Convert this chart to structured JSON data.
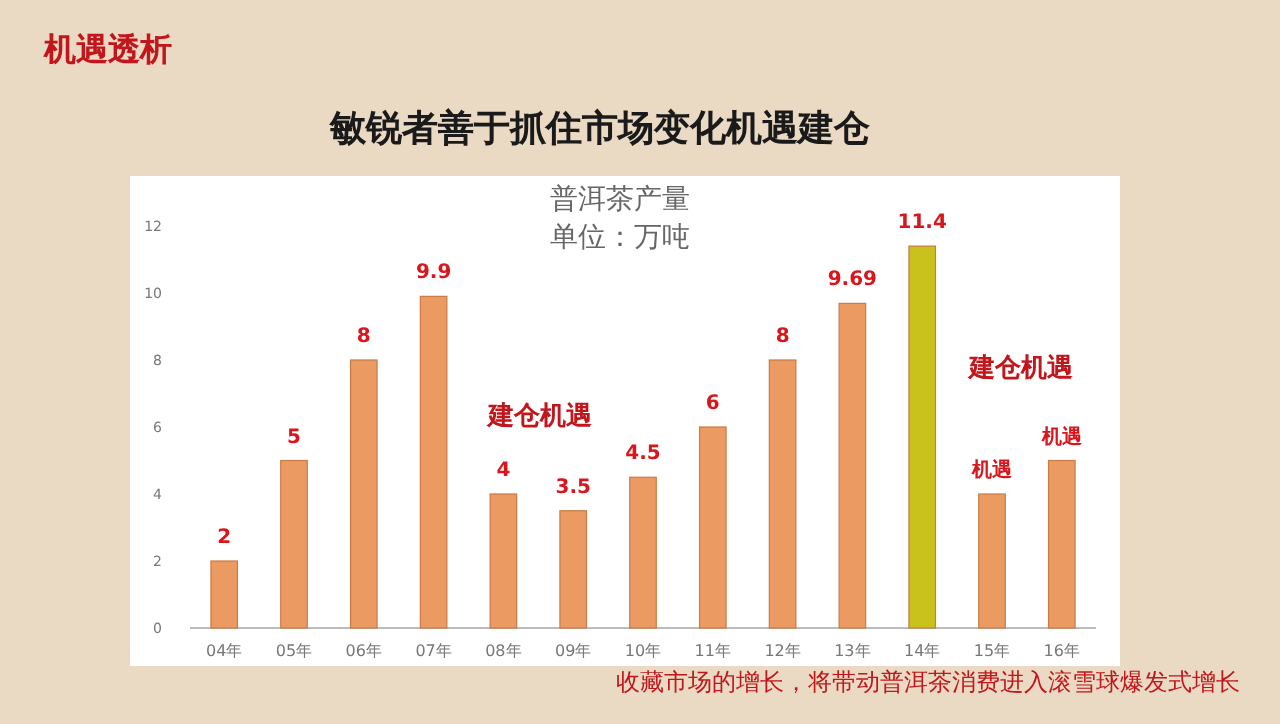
{
  "chart_data": {
    "type": "bar",
    "title": "敏锐者善于抓住市场变化机遇建仓",
    "subtitle": "普洱茶产量",
    "ylabel": "单位：万吨",
    "categories": [
      "04年",
      "05年",
      "06年",
      "07年",
      "08年",
      "09年",
      "10年",
      "11年",
      "12年",
      "13年",
      "14年",
      "15年",
      "16年"
    ],
    "values": [
      2,
      5,
      8,
      9.9,
      4,
      3.5,
      4.5,
      6,
      8,
      9.69,
      11.4,
      4,
      5
    ],
    "value_labels": [
      "2",
      "5",
      "8",
      "9.9",
      "4",
      "3.5",
      "4.5",
      "6",
      "8",
      "9.69",
      "11.4",
      "机遇",
      "机遇"
    ],
    "colors": [
      "#eb9a62",
      "#eb9a62",
      "#eb9a62",
      "#eb9a62",
      "#eb9a62",
      "#eb9a62",
      "#eb9a62",
      "#eb9a62",
      "#eb9a62",
      "#eb9a62",
      "#c9c21c",
      "#eb9a62",
      "#eb9a62"
    ],
    "ylim": [
      0,
      12
    ],
    "yticks": [
      0,
      2,
      4,
      6,
      8,
      10,
      12
    ],
    "grid": false,
    "annotations": [
      "机遇透析",
      "建仓机遇",
      "建仓机遇",
      "收藏市场的增长，将带动普洱茶消费进入滚雪球爆发式增长"
    ]
  }
}
